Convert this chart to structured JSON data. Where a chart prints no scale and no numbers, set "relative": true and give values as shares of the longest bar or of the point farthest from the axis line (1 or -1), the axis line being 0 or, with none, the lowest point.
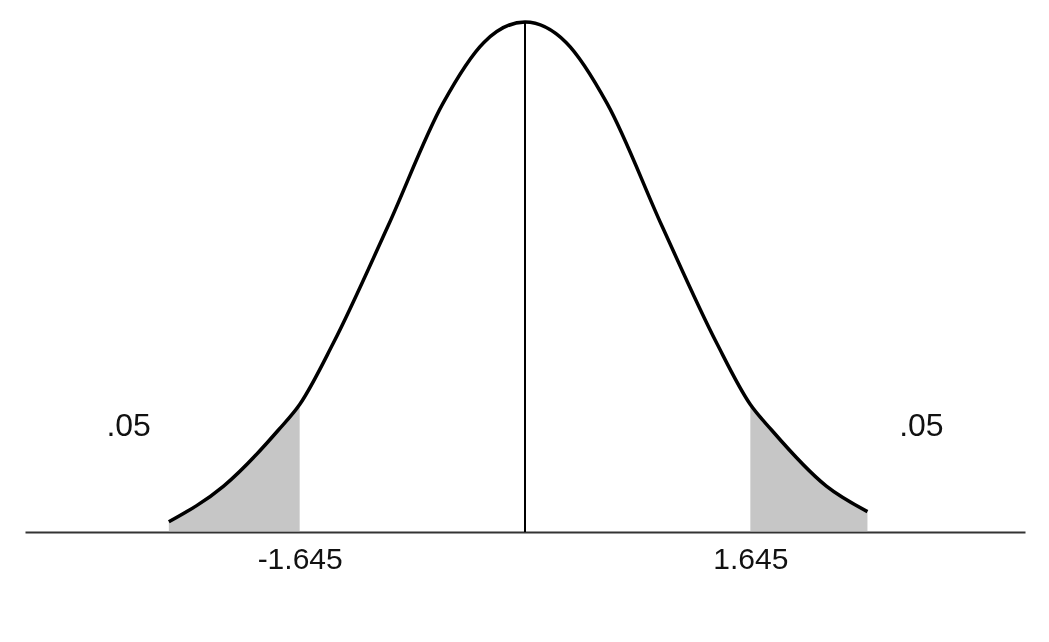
{
  "chart_data": {
    "type": "line",
    "relative": true,
    "xlim": [
      -3.65,
      3.65
    ],
    "xticks": [
      -1.645,
      1.645
    ],
    "grid": false,
    "series": [
      {
        "color": "#000000",
        "x": [
          -2.6,
          -2.2,
          -1.8,
          -1.645,
          -1.4,
          -1,
          -0.6,
          -0.3,
          0,
          0.3,
          0.6,
          1,
          1.4,
          1.645,
          1.8,
          2.2,
          2.5
        ],
        "values": [
          0.02,
          0.09,
          0.2,
          0.25,
          0.37,
          0.6,
          0.84,
          0.96,
          1,
          0.96,
          0.84,
          0.6,
          0.37,
          0.25,
          0.2,
          0.09,
          0.04
        ]
      },
      {
        "type": "area",
        "color": "#a0a0a0",
        "x": [
          -2.6,
          -2.2,
          -1.8,
          -1.645
        ],
        "values": [
          0.02,
          0.09,
          0.2,
          0.25
        ]
      },
      {
        "type": "area",
        "color": "#a0a0a0",
        "x": [
          1.645,
          1.8,
          2.2,
          2.5
        ],
        "values": [
          0.25,
          0.2,
          0.09,
          0.04
        ]
      }
    ],
    "ref_lines": [
      {
        "axis": "x",
        "value": 0,
        "color": "#000000"
      }
    ],
    "annotations": [
      {
        "text": ".05",
        "x": -2.2,
        "y": 0.09
      },
      {
        "text": ".05",
        "x": 2.2,
        "y": 0.09
      }
    ]
  }
}
